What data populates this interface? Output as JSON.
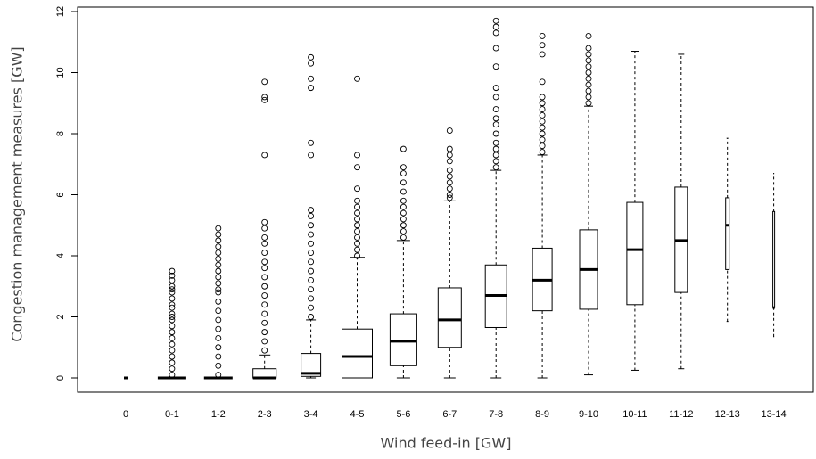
{
  "chart_data": {
    "type": "box",
    "xlabel": "Wind feed-in [GW]",
    "ylabel": "Congestion management measures [GW]",
    "categories": [
      "0",
      "0-1",
      "1-2",
      "2-3",
      "3-4",
      "4-5",
      "5-6",
      "6-7",
      "7-8",
      "8-9",
      "9-10",
      "10-11",
      "11-12",
      "12-13",
      "13-14"
    ],
    "whislo": [
      0,
      0,
      0,
      0,
      0,
      0,
      0,
      0,
      0,
      0,
      0.1,
      0.25,
      0.3,
      1.85,
      1.35
    ],
    "q1": [
      0,
      0,
      0,
      0,
      0.05,
      0,
      0.4,
      1.0,
      1.65,
      2.2,
      2.25,
      2.4,
      2.8,
      3.55,
      2.3
    ],
    "median": [
      0,
      0,
      0,
      0,
      0.15,
      0.7,
      1.2,
      1.9,
      2.7,
      3.2,
      3.55,
      4.2,
      4.5,
      5.0,
      2.3
    ],
    "q3": [
      0,
      0,
      0,
      0.3,
      0.8,
      1.6,
      2.1,
      2.95,
      3.7,
      4.25,
      4.85,
      5.75,
      6.25,
      5.9,
      5.45
    ],
    "whishi": [
      0,
      0,
      0,
      0.75,
      1.9,
      3.95,
      4.5,
      5.8,
      6.8,
      7.3,
      8.9,
      10.7,
      10.6,
      7.85,
      6.7
    ],
    "fliers": [
      [],
      [
        0.1,
        0.3,
        0.5,
        0.7,
        0.9,
        1.1,
        1.3,
        1.5,
        1.7,
        1.9,
        2.0,
        2.1,
        2.3,
        2.4,
        2.6,
        2.8,
        2.9,
        3.0,
        3.2,
        3.35,
        3.5
      ],
      [
        0.1,
        0.4,
        0.7,
        1.0,
        1.3,
        1.6,
        1.9,
        2.2,
        2.5,
        2.8,
        2.9,
        3.1,
        3.3,
        3.5,
        3.7,
        3.9,
        4.1,
        4.3,
        4.5,
        4.7,
        4.9
      ],
      [
        0.9,
        1.2,
        1.5,
        1.8,
        2.1,
        2.4,
        2.7,
        3.0,
        3.3,
        3.6,
        3.8,
        4.1,
        4.4,
        4.6,
        4.9,
        5.1,
        7.3,
        9.1,
        9.2,
        9.7
      ],
      [
        2.0,
        2.3,
        2.6,
        2.9,
        3.2,
        3.5,
        3.8,
        4.1,
        4.4,
        4.7,
        5.0,
        5.3,
        5.5,
        7.3,
        7.7,
        9.5,
        9.8,
        10.3,
        10.5
      ],
      [
        4.0,
        4.2,
        4.4,
        4.6,
        4.8,
        5.0,
        5.2,
        5.4,
        5.6,
        5.8,
        6.2,
        6.9,
        7.3,
        9.8
      ],
      [
        4.6,
        4.8,
        5.0,
        5.2,
        5.4,
        5.6,
        5.8,
        6.1,
        6.4,
        6.7,
        6.9,
        7.5
      ],
      [
        5.9,
        6.0,
        6.2,
        6.4,
        6.6,
        6.8,
        7.1,
        7.3,
        7.5,
        8.1
      ],
      [
        6.9,
        7.1,
        7.3,
        7.5,
        7.7,
        8.0,
        8.3,
        8.5,
        8.8,
        9.2,
        9.5,
        10.2,
        10.8,
        11.3,
        11.5,
        11.7
      ],
      [
        7.4,
        7.6,
        7.8,
        8.0,
        8.2,
        8.4,
        8.6,
        8.8,
        9.0,
        9.2,
        9.7,
        10.6,
        10.9,
        11.2
      ],
      [
        9.0,
        9.2,
        9.4,
        9.6,
        9.8,
        10.0,
        10.2,
        10.4,
        10.6,
        10.8,
        11.2
      ],
      [],
      [],
      [],
      []
    ],
    "ylim": [
      0,
      12
    ],
    "yticks": [
      0,
      2,
      4,
      6,
      8,
      10,
      12
    ]
  }
}
